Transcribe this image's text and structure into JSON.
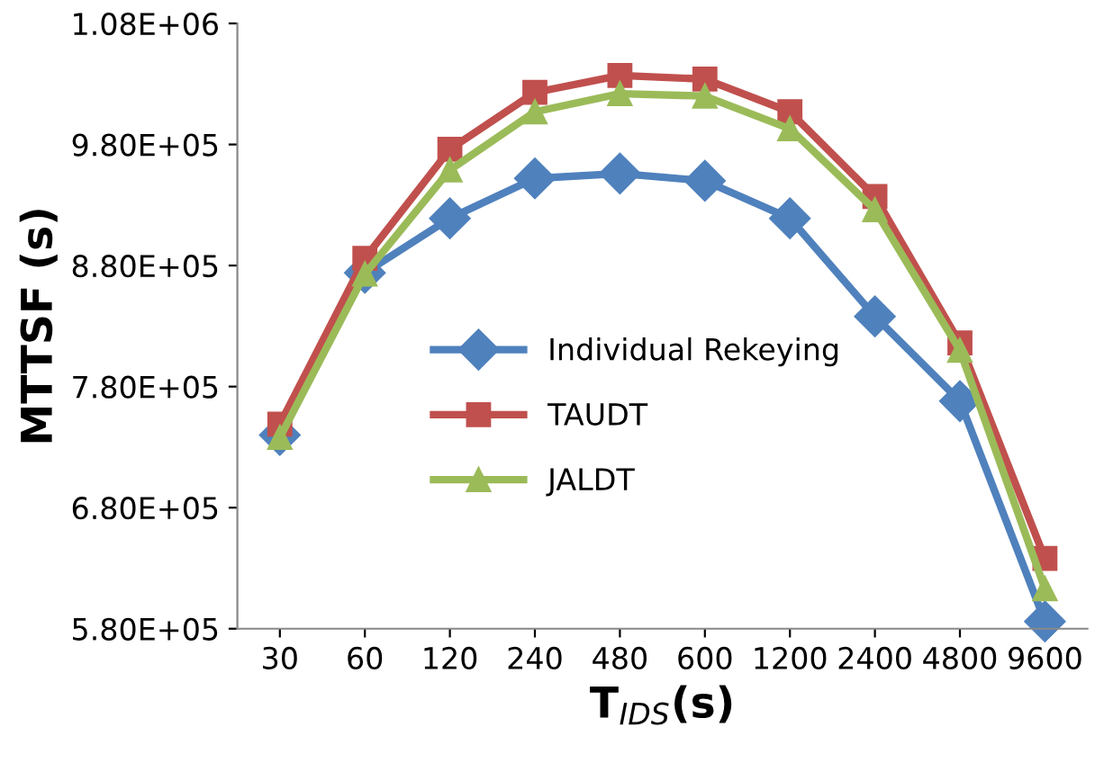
{
  "chart_data": {
    "type": "line",
    "xlabel": "T$_{IDS}$(s)",
    "ylabel": "MTTSF (s)",
    "categories": [
      "30",
      "60",
      "120",
      "240",
      "480",
      "600",
      "1200",
      "2400",
      "4800",
      "9600"
    ],
    "series": [
      {
        "name": "Individual Rekeying",
        "color": "#4f81bd",
        "marker": "diamond",
        "values": [
          740000,
          874000,
          919000,
          952000,
          956000,
          950000,
          919000,
          838000,
          768000,
          586000
        ]
      },
      {
        "name": "TAUDT",
        "color": "#c0504d",
        "marker": "square",
        "values": [
          749000,
          886000,
          976000,
          1023000,
          1037000,
          1034000,
          1007000,
          937000,
          816000,
          638000
        ]
      },
      {
        "name": "JALDT",
        "color": "#9bbb59",
        "marker": "triangle",
        "values": [
          738000,
          873000,
          959000,
          1007000,
          1022000,
          1020000,
          993000,
          926000,
          810000,
          613000
        ]
      }
    ],
    "ylim": [
      580000,
      1080000
    ],
    "yticks": [
      {
        "value": 580000,
        "label": "5.80E+05"
      },
      {
        "value": 680000,
        "label": "6.80E+05"
      },
      {
        "value": 780000,
        "label": "7.80E+05"
      },
      {
        "value": 880000,
        "label": "8.80E+05"
      },
      {
        "value": 980000,
        "label": "9.80E+05"
      },
      {
        "value": 1080000,
        "label": "1.08E+06"
      }
    ],
    "legend": "center",
    "grid": false,
    "line_style": "solid"
  }
}
